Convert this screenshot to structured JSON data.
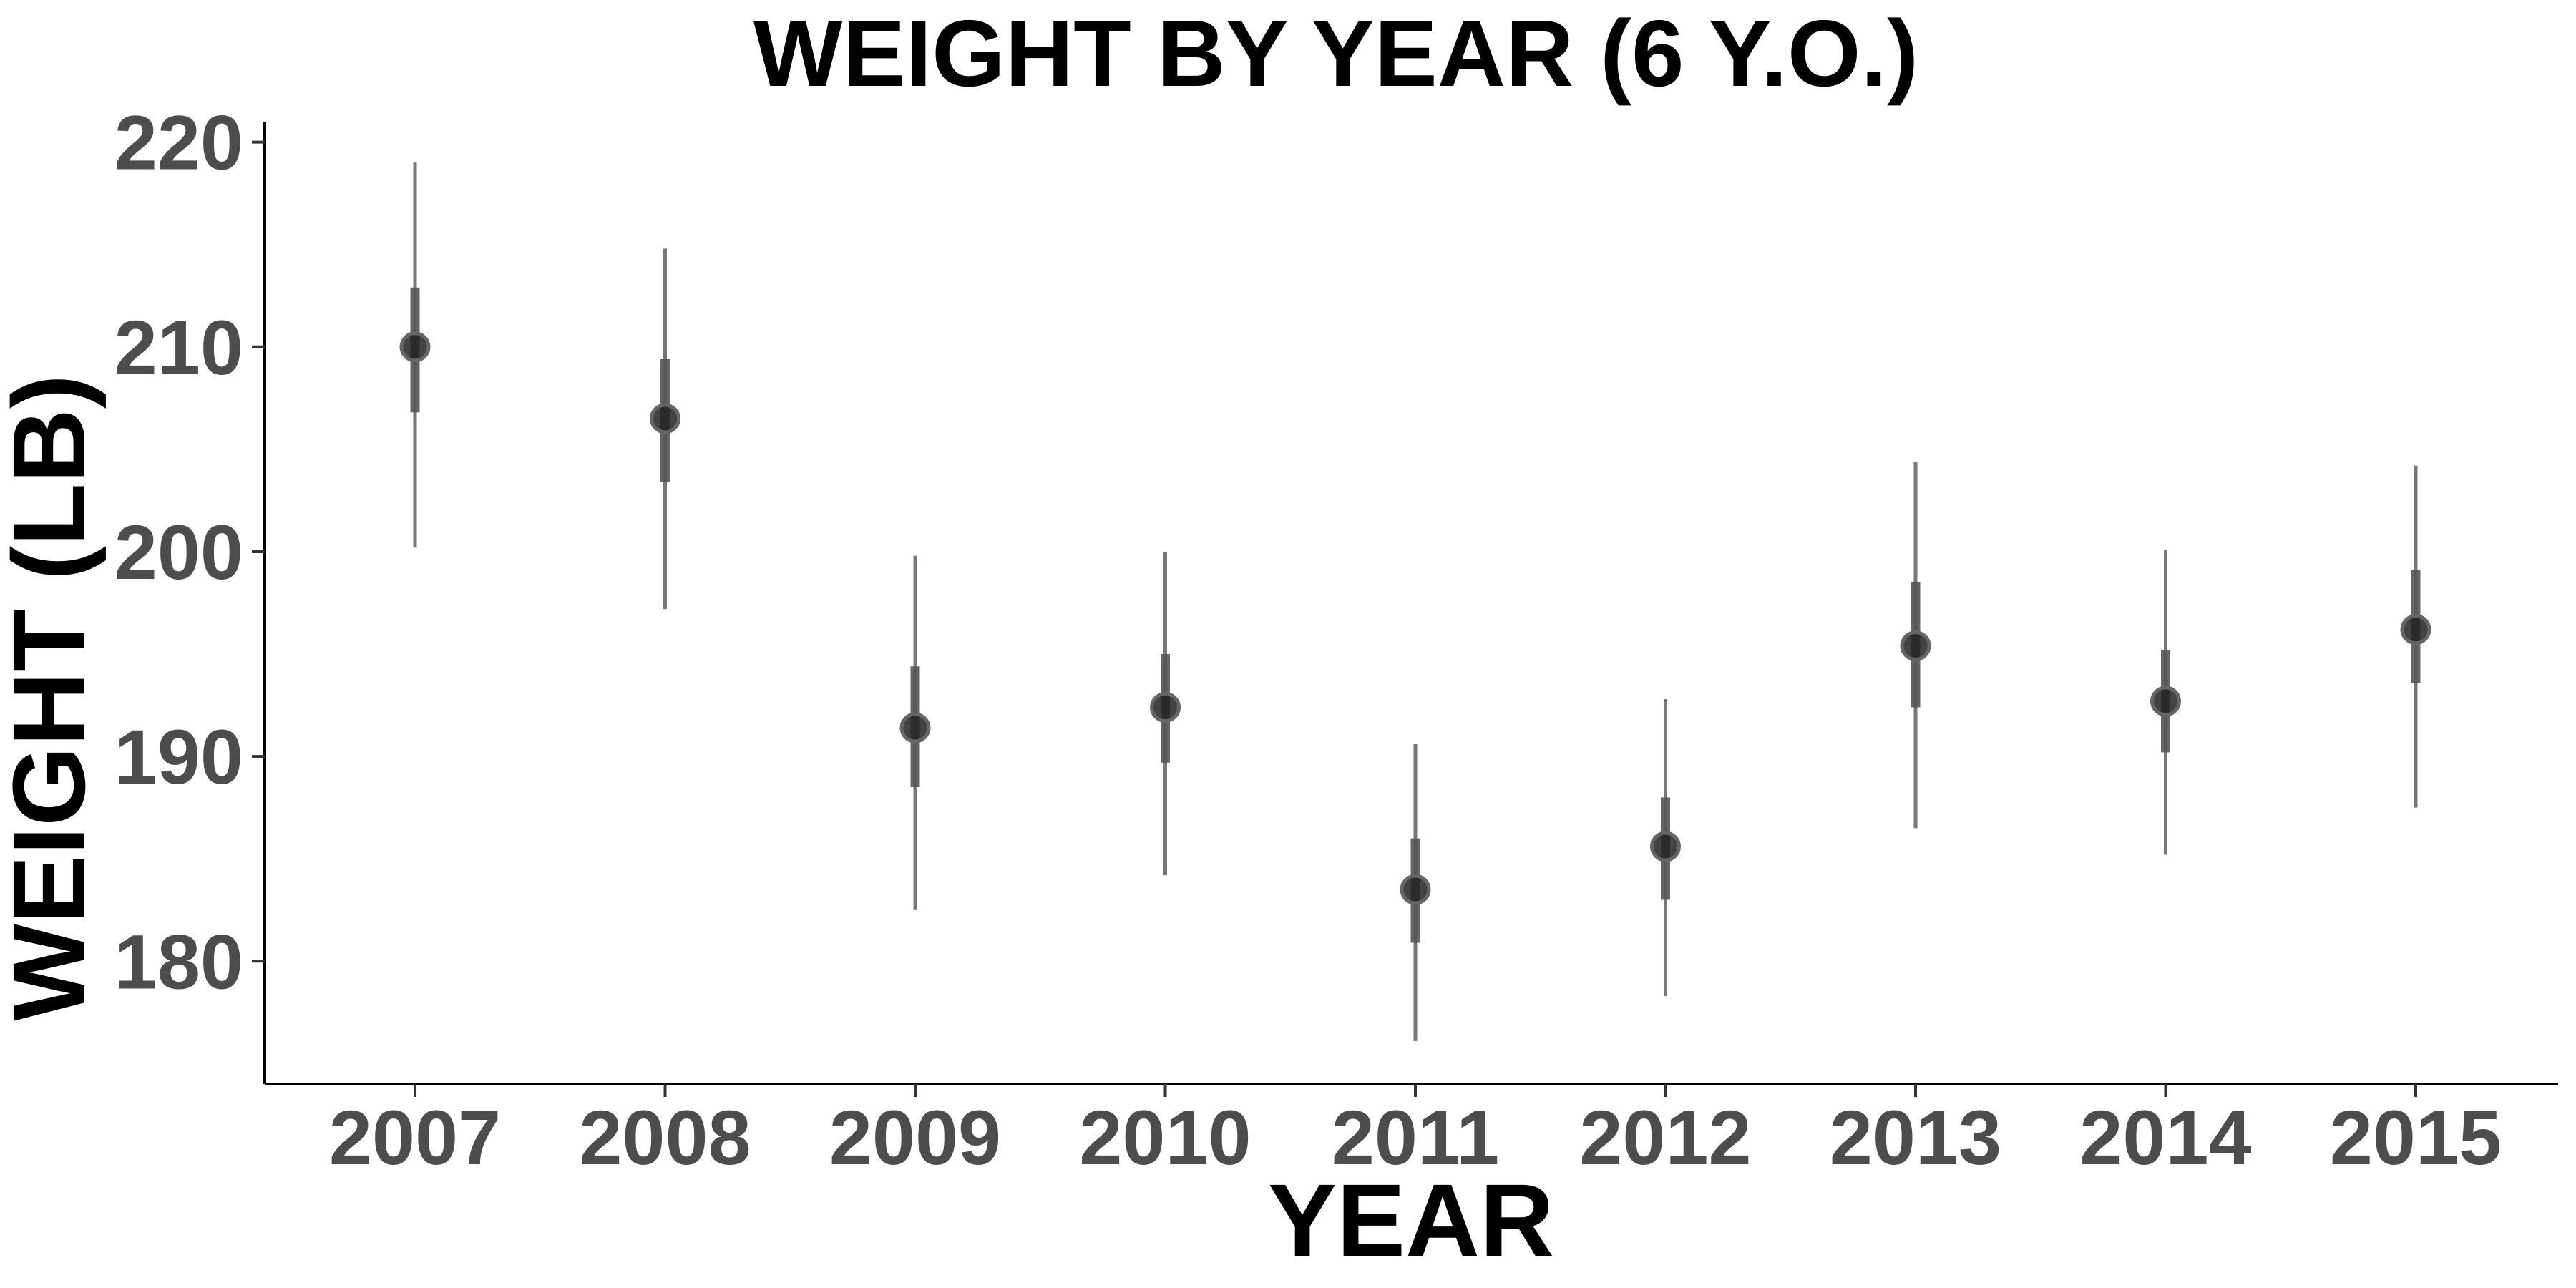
{
  "chart_data": {
    "type": "scatter",
    "title": "WEIGHT BY YEAR (6 Y.O.)",
    "xlabel": "YEAR",
    "ylabel": "WEIGHT (LB)",
    "ylim": [
      174,
      221
    ],
    "yticks": [
      180,
      190,
      200,
      210,
      220
    ],
    "categories": [
      "2007",
      "2008",
      "2009",
      "2010",
      "2011",
      "2012",
      "2013",
      "2014",
      "2015"
    ],
    "series": [
      {
        "values": [
          210.0,
          206.5,
          191.4,
          192.4,
          183.5,
          185.6,
          195.4,
          192.7,
          196.2
        ],
        "inner_low": [
          206.8,
          203.4,
          188.5,
          189.7,
          180.9,
          183.0,
          192.4,
          190.2,
          193.6
        ],
        "inner_high": [
          212.9,
          209.4,
          194.4,
          195.0,
          186.0,
          188.0,
          198.5,
          195.2,
          199.1
        ],
        "outer_low": [
          200.2,
          197.2,
          182.5,
          184.2,
          176.1,
          178.3,
          186.5,
          185.2,
          187.5
        ],
        "outer_high": [
          219.0,
          214.8,
          199.8,
          200.0,
          190.6,
          192.8,
          204.4,
          200.1,
          204.2
        ]
      }
    ],
    "grid": false,
    "legend": "none",
    "colors": {
      "point": "#222222",
      "interval": "#555555"
    }
  }
}
